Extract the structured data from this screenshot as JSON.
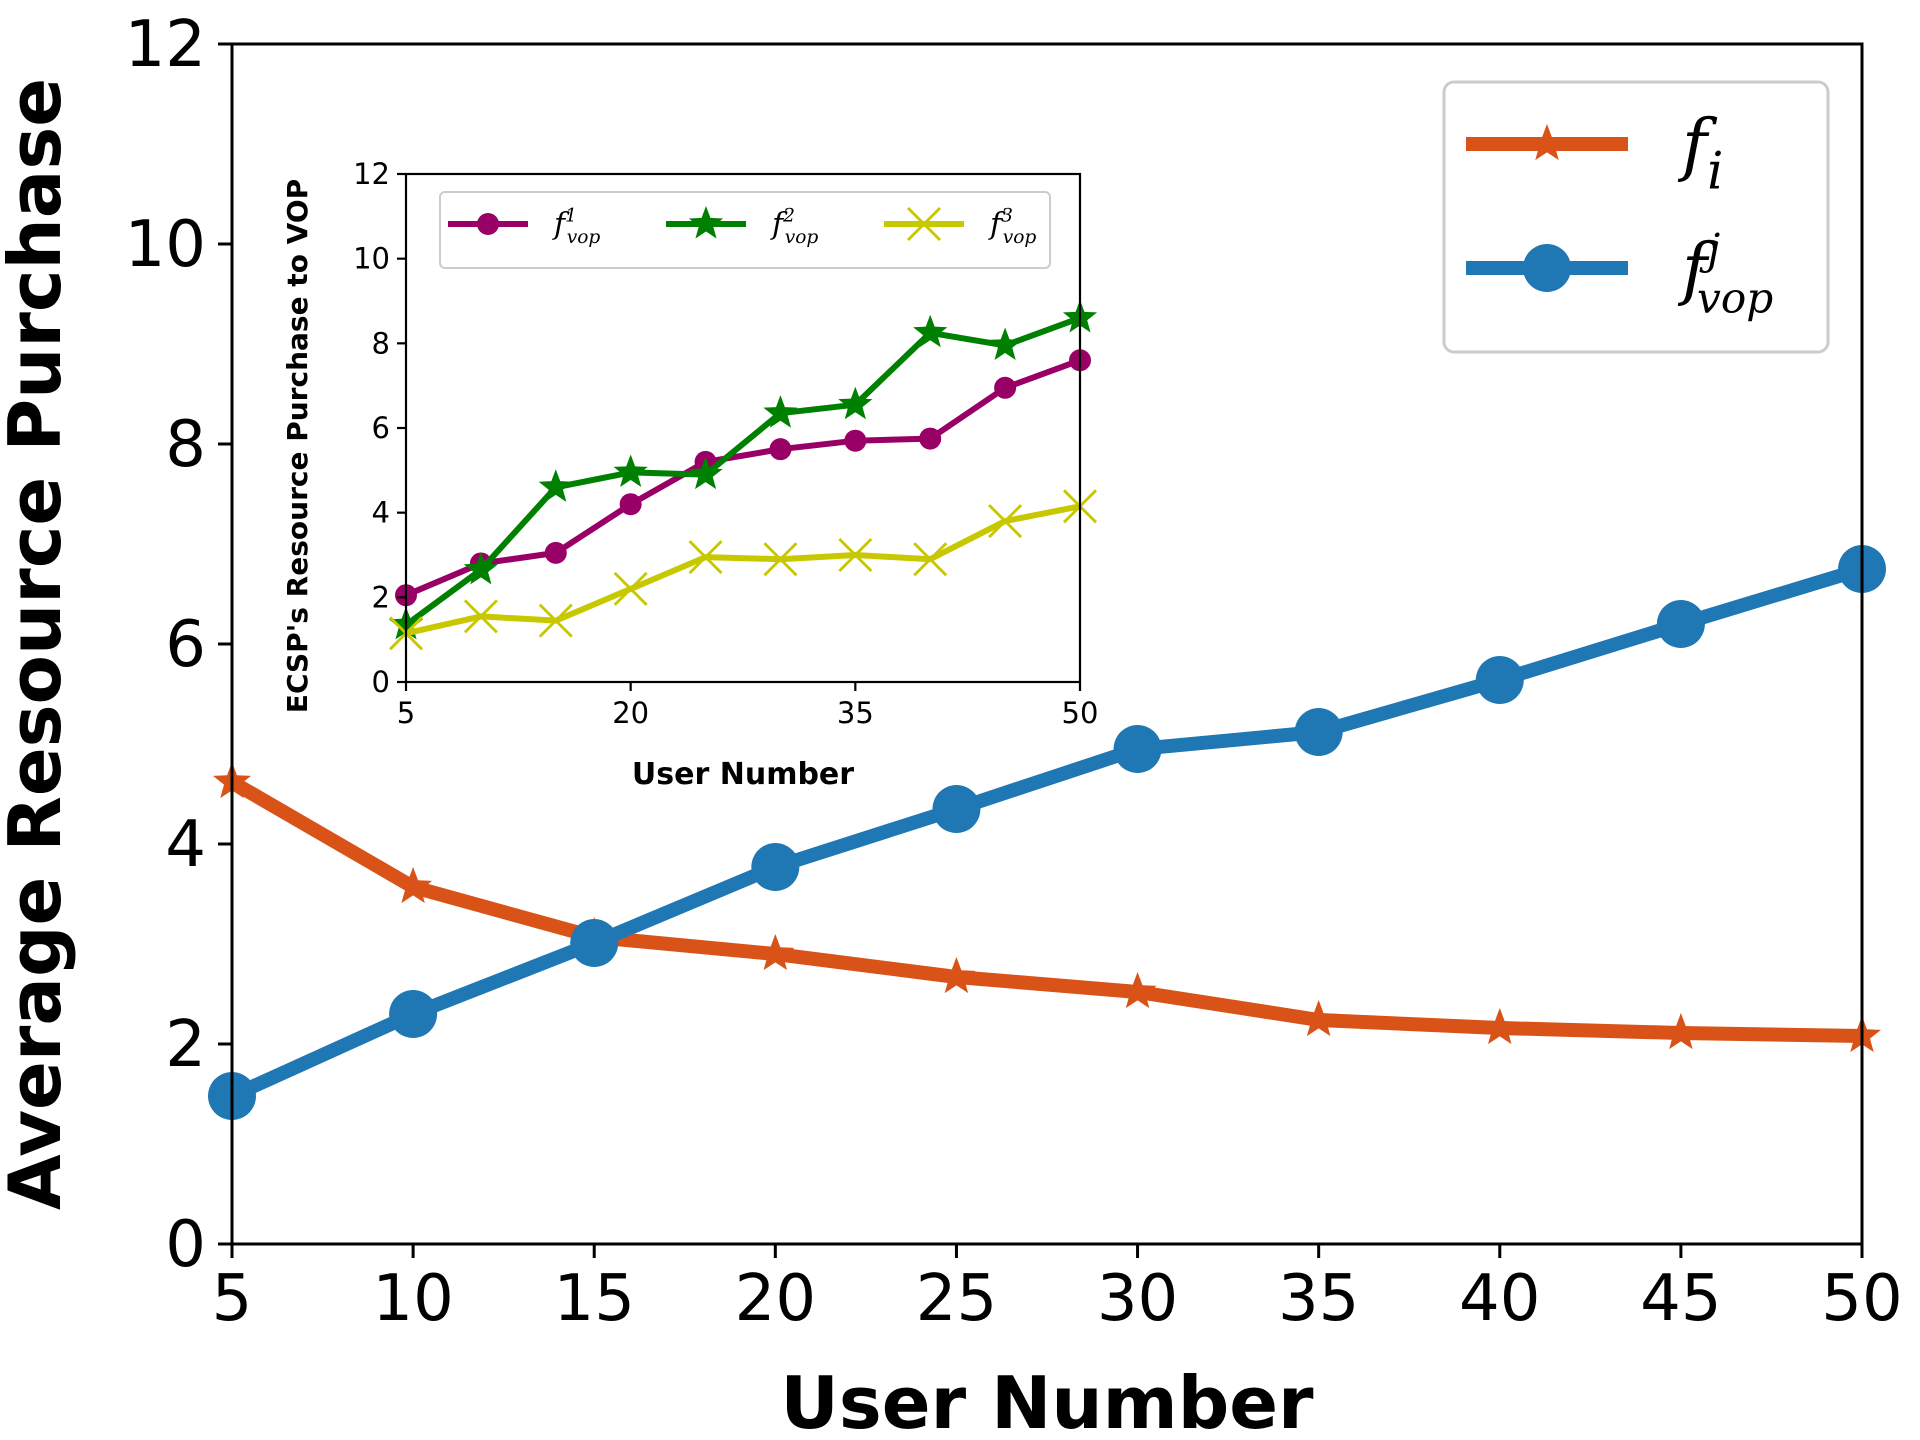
{
  "chart_data": [
    {
      "type": "line",
      "title": "",
      "xlabel": "User Number",
      "ylabel": "Average Resource Purchase",
      "x": [
        5,
        10,
        15,
        20,
        25,
        30,
        35,
        40,
        45,
        50
      ],
      "xticks": [
        "5",
        "10",
        "15",
        "20",
        "25",
        "30",
        "35",
        "40",
        "45",
        "50"
      ],
      "yticks": [
        "0",
        "2",
        "4",
        "6",
        "8",
        "10",
        "12"
      ],
      "xlim": [
        5,
        50
      ],
      "ylim": [
        0,
        12
      ],
      "grid": false,
      "legend_position": "top-right",
      "series": [
        {
          "name": "f_i",
          "legend_base": "f",
          "legend_sup": "",
          "legend_sub": "i",
          "color": "#d95319",
          "marker": "star",
          "values": [
            4.62,
            3.57,
            3.07,
            2.9,
            2.67,
            2.52,
            2.24,
            2.16,
            2.11,
            2.08
          ]
        },
        {
          "name": "f_vop^j",
          "legend_base": "f",
          "legend_sup": "j",
          "legend_sub": "vop",
          "color": "#1f77b4",
          "marker": "circle",
          "values": [
            1.48,
            2.3,
            3.01,
            3.77,
            4.35,
            4.95,
            5.12,
            5.64,
            6.2,
            6.75
          ]
        }
      ]
    },
    {
      "type": "line",
      "title": "",
      "xlabel": "User Number",
      "ylabel": "ECSP's Resource Purchase to VOP",
      "x": [
        5,
        10,
        15,
        20,
        25,
        30,
        35,
        40,
        45,
        50
      ],
      "xticks": [
        "5",
        "20",
        "35",
        "50"
      ],
      "xtick_values": [
        5,
        20,
        35,
        50
      ],
      "yticks": [
        "0",
        "2",
        "4",
        "6",
        "8",
        "10",
        "12"
      ],
      "xlim": [
        5,
        50
      ],
      "ylim": [
        0,
        12
      ],
      "grid": false,
      "legend_position": "top-left",
      "series": [
        {
          "name": "f_vop^1",
          "legend_base": "f",
          "legend_sup": "1",
          "legend_sub": "vop",
          "color": "#990066",
          "marker": "circle",
          "values": [
            2.05,
            2.8,
            3.05,
            4.2,
            5.2,
            5.5,
            5.7,
            5.75,
            6.95,
            7.6
          ]
        },
        {
          "name": "f_vop^2",
          "legend_base": "f",
          "legend_sup": "2",
          "legend_sub": "vop",
          "color": "#008000",
          "marker": "star",
          "values": [
            1.35,
            2.65,
            4.6,
            4.95,
            4.9,
            6.35,
            6.55,
            8.25,
            7.95,
            8.6
          ]
        },
        {
          "name": "f_vop^3",
          "legend_base": "f",
          "legend_sup": "3",
          "legend_sub": "vop",
          "color": "#c8c800",
          "marker": "x",
          "values": [
            1.15,
            1.55,
            1.45,
            2.2,
            2.95,
            2.9,
            3.0,
            2.9,
            3.8,
            4.15
          ]
        }
      ]
    }
  ]
}
